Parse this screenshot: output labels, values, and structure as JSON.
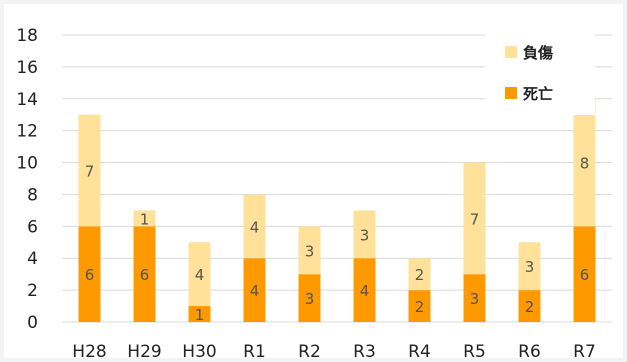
{
  "chart_data": {
    "type": "bar",
    "stacked": true,
    "categories": [
      "H28",
      "H29",
      "H30",
      "R1",
      "R2",
      "R3",
      "R4",
      "R5",
      "R6",
      "R7"
    ],
    "series": [
      {
        "name": "死亡",
        "values": [
          6,
          6,
          1,
          4,
          3,
          4,
          2,
          3,
          2,
          6
        ],
        "color": "#ff9900"
      },
      {
        "name": "負傷",
        "values": [
          7,
          1,
          4,
          4,
          3,
          3,
          2,
          7,
          3,
          8
        ],
        "color": "#ffe199"
      }
    ],
    "ylim": [
      0,
      18
    ],
    "yticks": [
      0,
      2,
      4,
      6,
      8,
      10,
      12,
      14,
      16,
      18
    ],
    "grid": true,
    "legend_position": "top-right",
    "legend_order": [
      "負傷",
      "死亡"
    ],
    "data_labels": true
  }
}
